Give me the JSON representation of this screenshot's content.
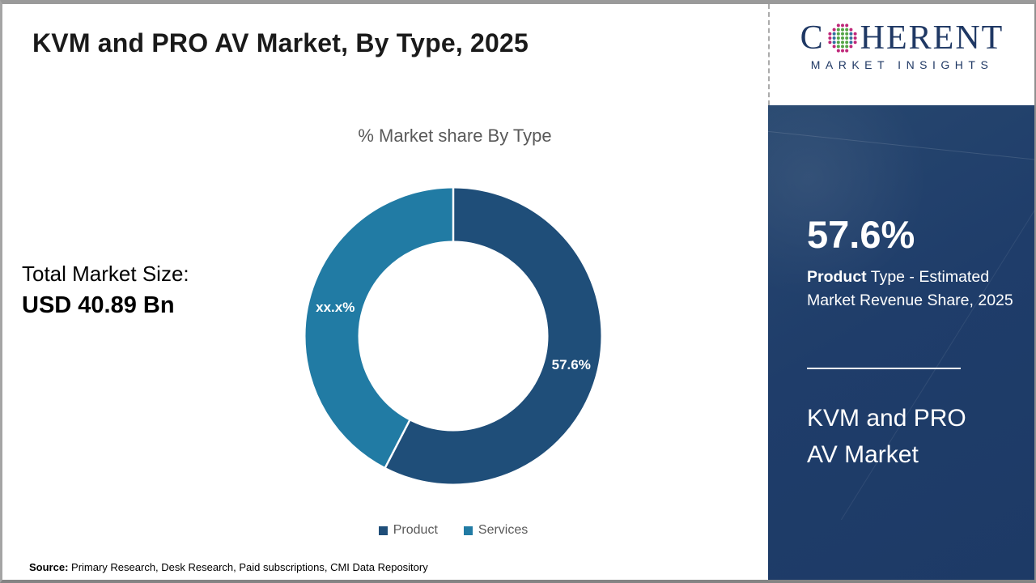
{
  "header": {
    "title": "KVM and PRO AV Market, By Type, 2025"
  },
  "logo": {
    "word_start": "C",
    "word_end": "HERENT",
    "subtitle": "MARKET INSIGHTS",
    "text_color": "#1f3864",
    "globe_colors": {
      "green": "#54a546",
      "teal": "#31709f",
      "magenta": "#bf2779"
    }
  },
  "chart_data": {
    "type": "pie",
    "subtype": "donut",
    "title": "% Market share By Type",
    "categories": [
      "Product",
      "Services"
    ],
    "values": [
      57.6,
      42.4
    ],
    "labels": [
      "57.6%",
      "xx.x%"
    ],
    "colors": [
      "#1f4e79",
      "#217ba4"
    ],
    "start_angle_deg": 0,
    "direction": "clockwise",
    "legend_position": "bottom"
  },
  "left_panel": {
    "total_label": "Total Market Size:",
    "total_value": "USD 40.89 Bn"
  },
  "sidebar": {
    "stat": "57.6%",
    "desc_bold": "Product",
    "desc_rest": " Type - Estimated Market Revenue Share, 2025",
    "market_name": "KVM and PRO AV Market",
    "panel_color": "#1f3d6a"
  },
  "footer": {
    "source_label": "Source:",
    "source_text": " Primary Research, Desk Research, Paid subscriptions, CMI Data Repository"
  }
}
